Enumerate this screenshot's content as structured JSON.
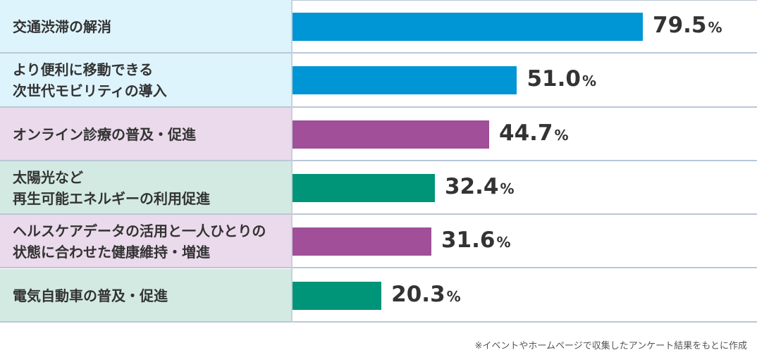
{
  "chart_data": {
    "type": "bar",
    "orientation": "horizontal",
    "unit": "%",
    "xlim": [
      0,
      100
    ],
    "grid": false,
    "categories": [
      {
        "lines": [
          "交通渋滞の解消"
        ],
        "value": 79.5,
        "value_text": "79.5",
        "color": "#0095d4",
        "label_bg": "#def4fc"
      },
      {
        "lines": [
          "より便利に移動できる",
          "次世代モビリティの導入"
        ],
        "value": 51.0,
        "value_text": "51.0",
        "color": "#0095d4",
        "label_bg": "#def4fc"
      },
      {
        "lines": [
          "オンライン診療の普及・促進"
        ],
        "value": 44.7,
        "value_text": "44.7",
        "color": "#a04f98",
        "label_bg": "#eadaeb"
      },
      {
        "lines": [
          "太陽光など",
          "再生可能エネルギーの利用促進"
        ],
        "value": 32.4,
        "value_text": "32.4",
        "color": "#009479",
        "label_bg": "#d3eae3"
      },
      {
        "lines": [
          "ヘルスケアデータの活用と一人ひとりの",
          "状態に合わせた健康維持・増進"
        ],
        "value": 31.6,
        "value_text": "31.6",
        "color": "#a04f98",
        "label_bg": "#eadaeb"
      },
      {
        "lines": [
          "電気自動車の普及・促進"
        ],
        "value": 20.3,
        "value_text": "20.3",
        "color": "#009479",
        "label_bg": "#d3eae3"
      }
    ]
  },
  "footnote": "※イベントやホームページで収集したアンケート結果をもとに作成"
}
